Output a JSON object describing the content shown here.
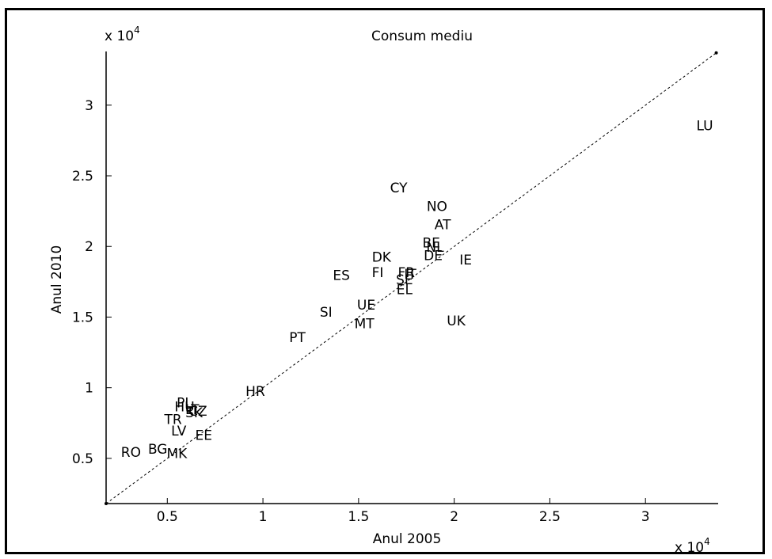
{
  "chart_data": {
    "type": "scatter",
    "title": "Consum mediu",
    "xlabel": "Anul 2005",
    "ylabel": "Anul 2010",
    "x_multiplier": "x 10",
    "y_multiplier": "x 10",
    "multiplier_exponent": "4",
    "xlim": [
      0.18,
      3.38
    ],
    "ylim": [
      0.18,
      3.38
    ],
    "x_ticks": [
      0.5,
      1,
      1.5,
      2,
      2.5,
      3
    ],
    "y_ticks": [
      0.5,
      1,
      1.5,
      2,
      2.5,
      3
    ],
    "x_tick_labels": [
      "0.5",
      "1",
      "1.5",
      "2",
      "2.5",
      "3"
    ],
    "y_tick_labels": [
      "0.5",
      "1",
      "1.5",
      "2",
      "2.5",
      "3"
    ],
    "reference_line": {
      "style": "dashed",
      "from": [
        0.18,
        0.18
      ],
      "to": [
        3.37,
        3.37
      ]
    },
    "grid": false,
    "points": [
      {
        "label": "LU",
        "x": 3.31,
        "y": 2.85
      },
      {
        "label": "CY",
        "x": 1.71,
        "y": 2.41
      },
      {
        "label": "NO",
        "x": 1.91,
        "y": 2.28
      },
      {
        "label": "AT",
        "x": 1.94,
        "y": 2.15
      },
      {
        "label": "BE",
        "x": 1.88,
        "y": 2.02
      },
      {
        "label": "NL",
        "x": 1.9,
        "y": 1.99
      },
      {
        "label": "DE",
        "x": 1.89,
        "y": 1.93
      },
      {
        "label": "IE",
        "x": 2.06,
        "y": 1.9
      },
      {
        "label": "DK",
        "x": 1.62,
        "y": 1.92
      },
      {
        "label": "FI",
        "x": 1.6,
        "y": 1.81
      },
      {
        "label": "FR",
        "x": 1.75,
        "y": 1.81
      },
      {
        "label": "IT",
        "x": 1.77,
        "y": 1.8
      },
      {
        "label": "ES",
        "x": 1.41,
        "y": 1.79
      },
      {
        "label": "SE",
        "x": 1.74,
        "y": 1.76
      },
      {
        "label": "EL",
        "x": 1.74,
        "y": 1.69
      },
      {
        "label": "UE",
        "x": 1.54,
        "y": 1.58
      },
      {
        "label": "SI",
        "x": 1.33,
        "y": 1.53
      },
      {
        "label": "MT",
        "x": 1.53,
        "y": 1.45
      },
      {
        "label": "UK",
        "x": 2.01,
        "y": 1.47
      },
      {
        "label": "PT",
        "x": 1.18,
        "y": 1.35
      },
      {
        "label": "HR",
        "x": 0.96,
        "y": 0.97
      },
      {
        "label": "PL",
        "x": 0.59,
        "y": 0.89
      },
      {
        "label": "HU",
        "x": 0.59,
        "y": 0.86
      },
      {
        "label": "LT",
        "x": 0.63,
        "y": 0.84
      },
      {
        "label": "CZ",
        "x": 0.66,
        "y": 0.83
      },
      {
        "label": "SK",
        "x": 0.64,
        "y": 0.82
      },
      {
        "label": "TR",
        "x": 0.53,
        "y": 0.77
      },
      {
        "label": "LV",
        "x": 0.56,
        "y": 0.69
      },
      {
        "label": "EE",
        "x": 0.69,
        "y": 0.66
      },
      {
        "label": "RO",
        "x": 0.31,
        "y": 0.54
      },
      {
        "label": "BG",
        "x": 0.45,
        "y": 0.56
      },
      {
        "label": "MK",
        "x": 0.55,
        "y": 0.53
      }
    ]
  }
}
